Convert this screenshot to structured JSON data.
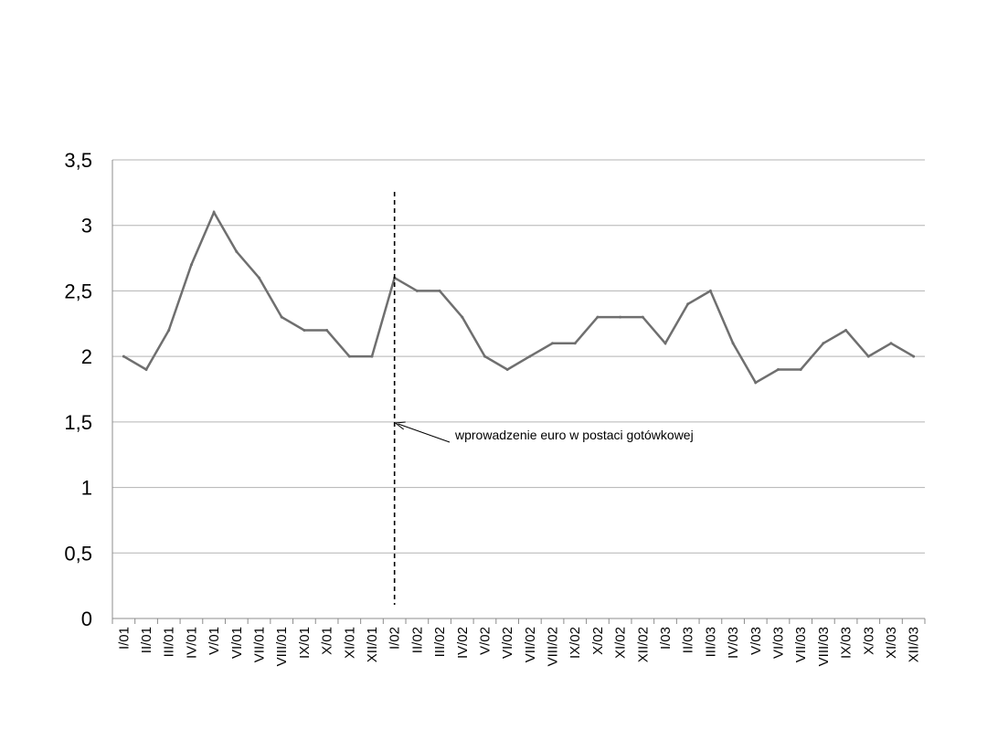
{
  "chart_data": {
    "type": "line",
    "title": "",
    "xlabel": "",
    "ylabel": "",
    "ylim": [
      0,
      3.5
    ],
    "yticks": [
      "0",
      "0,5",
      "1",
      "1,5",
      "2",
      "2,5",
      "3",
      "3,5"
    ],
    "grid": true,
    "legend": "none",
    "categories": [
      "I/01",
      "II/01",
      "III/01",
      "IV/01",
      "V/01",
      "VI/01",
      "VII/01",
      "VIII/01",
      "IX/01",
      "X/01",
      "XI/01",
      "XII/01",
      "I/02",
      "II/02",
      "III/02",
      "IV/02",
      "V/02",
      "VI/02",
      "VII/02",
      "VIII/02",
      "IX/02",
      "X/02",
      "XI/02",
      "XII/02",
      "I/03",
      "II/03",
      "III/03",
      "IV/03",
      "V/03",
      "VI/03",
      "VII/03",
      "VIII/03",
      "IX/03",
      "X/03",
      "XI/03",
      "XII/03"
    ],
    "series": [
      {
        "values": [
          2.0,
          1.9,
          2.2,
          2.7,
          3.1,
          2.8,
          2.6,
          2.3,
          2.2,
          2.2,
          2.0,
          2.0,
          2.6,
          2.5,
          2.5,
          2.3,
          2.0,
          1.9,
          2.0,
          2.1,
          2.1,
          2.3,
          2.3,
          2.3,
          2.1,
          2.4,
          2.5,
          2.1,
          1.8,
          1.9,
          1.9,
          2.1,
          2.2,
          2.0,
          2.1,
          2.0
        ]
      }
    ],
    "marker_line": {
      "category": "I/02"
    },
    "annotation": {
      "text": "wprowadzenie euro w postaci gotówkowej",
      "points_to": "I/02"
    },
    "colors": {
      "line": "#6f6f6f",
      "grid": "#b3b3b3",
      "axis": "#8c8c8c",
      "marker": "#000000"
    }
  }
}
